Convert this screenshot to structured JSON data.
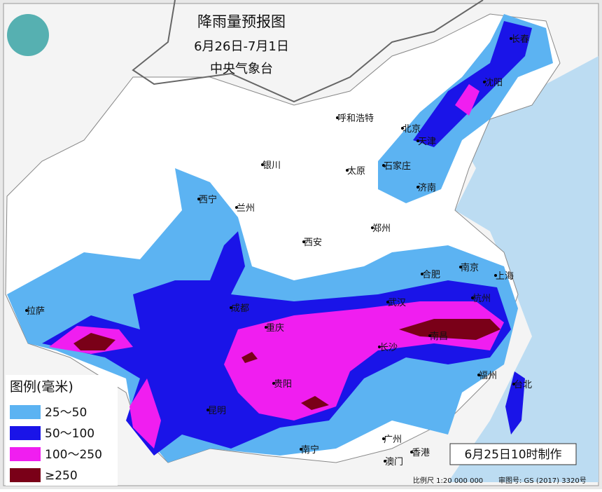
{
  "header": {
    "title": "降雨量预报图",
    "period": "6月26日-7月1日",
    "issuer": "中央气象台"
  },
  "cities": [
    "长春",
    "沈阳",
    "呼和浩特",
    "北京",
    "天津",
    "银川",
    "太原",
    "石家庄",
    "济南",
    "西宁",
    "兰州",
    "郑州",
    "西安",
    "合肥",
    "南京",
    "上海",
    "成都",
    "武汉",
    "杭州",
    "重庆",
    "长沙",
    "南昌",
    "拉萨",
    "贵阳",
    "福州",
    "台北",
    "昆明",
    "南宁",
    "广州",
    "香港",
    "澳门"
  ],
  "legend": {
    "title": "图例(毫米)",
    "items": [
      {
        "label": "25～50",
        "color": "#5cb3f2"
      },
      {
        "label": "50～100",
        "color": "#1a14e8"
      },
      {
        "label": "100～250",
        "color": "#f01ef0"
      },
      {
        "label": "≥250",
        "color": "#7a0018"
      }
    ]
  },
  "issued": "6月25日10时制作",
  "footer": {
    "scale": "比例尺 1:20 000 000",
    "approval": "审图号: GS (2017) 3320号"
  }
}
